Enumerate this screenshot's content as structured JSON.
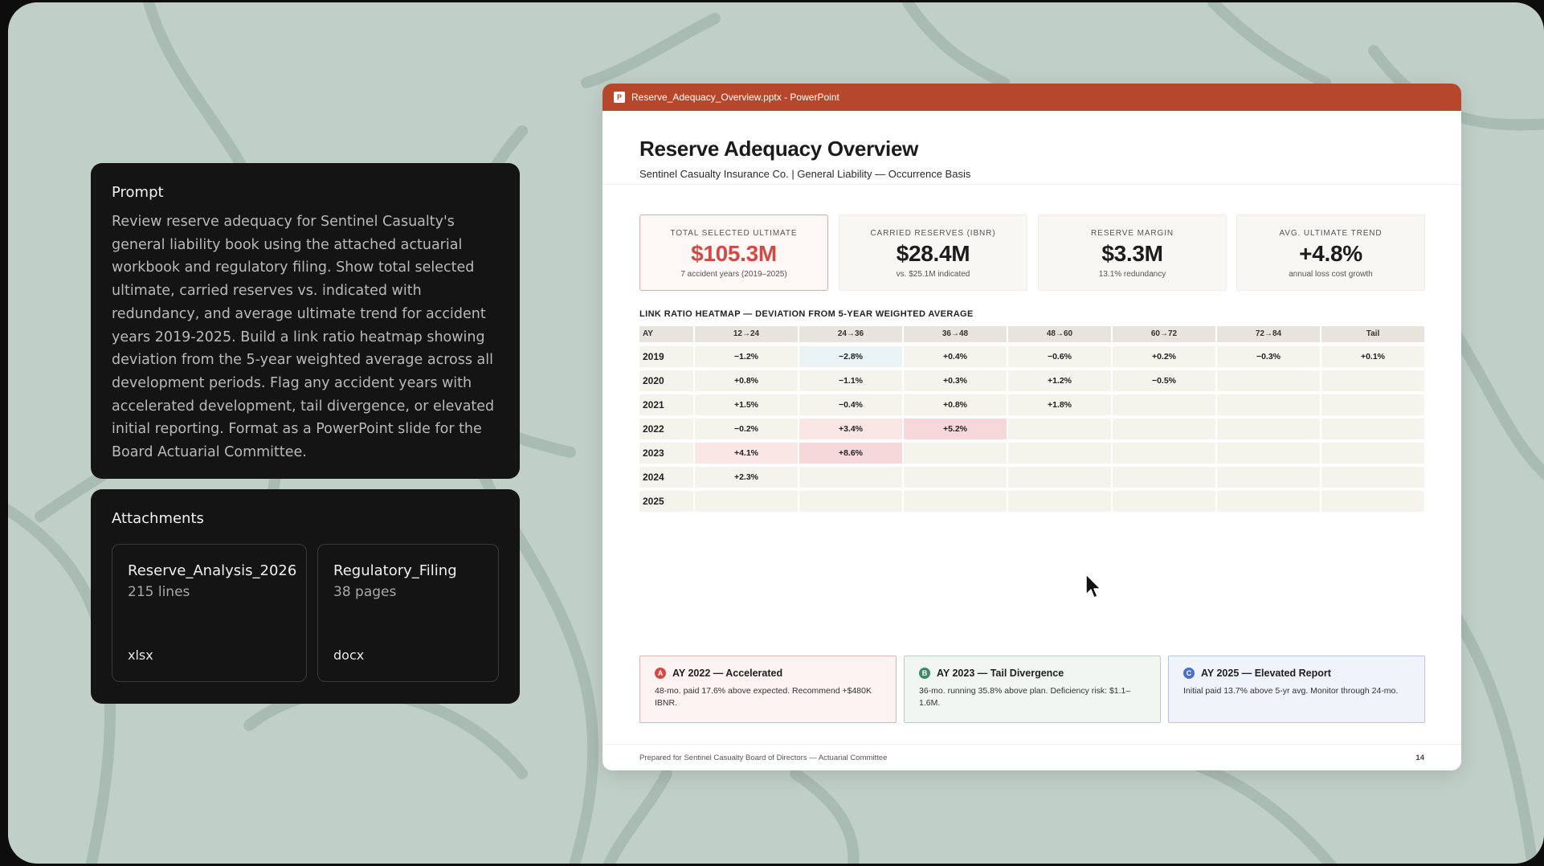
{
  "prompt": {
    "title": "Prompt",
    "body": "Review reserve adequacy for Sentinel Casualty's general liability book using the attached actuarial workbook and regulatory filing. Show total selected ultimate, carried reserves vs. indicated with redundancy, and average ultimate trend for accident years 2019-2025. Build a link ratio heatmap showing deviation from the 5-year weighted average across all development periods. Flag any accident years with accelerated development, tail divergence, or elevated initial reporting. Format as a PowerPoint slide for the Board Actuarial Committee."
  },
  "attachments": {
    "title": "Attachments",
    "files": [
      {
        "name": "Reserve_Analysis_2026",
        "meta": "215 lines",
        "ext": "xlsx"
      },
      {
        "name": "Regulatory_Filing",
        "meta": "38 pages",
        "ext": "docx"
      }
    ]
  },
  "window": {
    "icon_letter": "P",
    "title": "Reserve_Adequacy_Overview.pptx - PowerPoint",
    "accent": "#b7472a"
  },
  "slide": {
    "title": "Reserve Adequacy Overview",
    "subtitle": "Sentinel Casualty Insurance Co.  |  General Liability — Occurrence Basis",
    "kpis": [
      {
        "label": "TOTAL SELECTED ULTIMATE",
        "value": "$105.3M",
        "sub": "7 accident years (2019–2025)"
      },
      {
        "label": "CARRIED RESERVES (IBNR)",
        "value": "$28.4M",
        "sub": "vs. $25.1M indicated"
      },
      {
        "label": "RESERVE MARGIN",
        "value": "$3.3M",
        "sub": "13.1% redundancy"
      },
      {
        "label": "AVG. ULTIMATE TREND",
        "value": "+4.8%",
        "sub": "annual loss cost growth"
      }
    ],
    "heatmap": {
      "title": "LINK RATIO HEATMAP — DEVIATION FROM 5-YEAR WEIGHTED AVERAGE",
      "row_header": "AY",
      "columns": [
        "12→24",
        "24→36",
        "36→48",
        "48→60",
        "60→72",
        "72→84",
        "Tail"
      ],
      "rows": [
        {
          "ay": "2019",
          "cells": [
            "−1.2%",
            "−2.8%",
            "+0.4%",
            "−0.6%",
            "+0.2%",
            "−0.3%",
            "+0.1%"
          ]
        },
        {
          "ay": "2020",
          "cells": [
            "+0.8%",
            "−1.1%",
            "+0.3%",
            "+1.2%",
            "−0.5%",
            "",
            ""
          ]
        },
        {
          "ay": "2021",
          "cells": [
            "+1.5%",
            "−0.4%",
            "+0.8%",
            "+1.8%",
            "",
            "",
            ""
          ]
        },
        {
          "ay": "2022",
          "cells": [
            "−0.2%",
            "+3.4%",
            "+5.2%",
            "",
            "",
            "",
            ""
          ]
        },
        {
          "ay": "2023",
          "cells": [
            "+4.1%",
            "+8.6%",
            "",
            "",
            "",
            "",
            ""
          ]
        },
        {
          "ay": "2024",
          "cells": [
            "+2.3%",
            "",
            "",
            "",
            "",
            "",
            ""
          ]
        },
        {
          "ay": "2025",
          "cells": [
            "",
            "",
            "",
            "",
            "",
            "",
            ""
          ]
        }
      ]
    },
    "flags": [
      {
        "badge": "A",
        "color": "#d04b45",
        "title": "AY 2022 — Accelerated",
        "desc": "48-mo. paid 17.6% above expected. Recommend +$480K IBNR."
      },
      {
        "badge": "B",
        "color": "#3f8a64",
        "title": "AY 2023 — Tail Divergence",
        "desc": "36-mo. running 35.8% above plan. Deficiency risk: $1.1–1.6M."
      },
      {
        "badge": "C",
        "color": "#4a72c4",
        "title": "AY 2025 — Elevated Report",
        "desc": "Initial paid 13.7% above 5-yr avg. Monitor through 24-mo."
      }
    ],
    "footer": "Prepared for Sentinel Casualty Board of Directors — Actuarial Committee",
    "page_number": "14"
  }
}
